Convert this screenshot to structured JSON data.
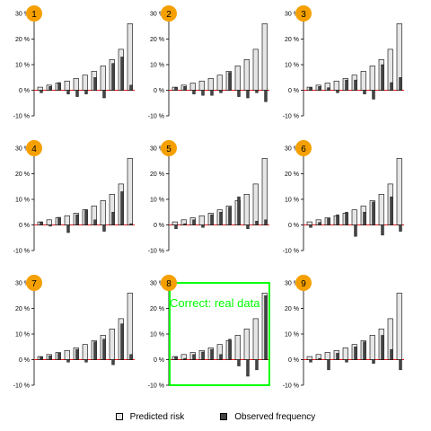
{
  "chart_data": {
    "type": "bar",
    "layout": "3x3 lineup grid",
    "ylim": [
      -10,
      30
    ],
    "yticks": [
      "-10 %",
      "0 %",
      "10 %",
      "20 %",
      "30 %"
    ],
    "yticks_values": [
      -10,
      0,
      10,
      20,
      30
    ],
    "reference_line": {
      "y": 0,
      "color": "#e31a1c"
    },
    "legend": {
      "placement": "bottom-center",
      "items": [
        {
          "label": "Predicted risk",
          "color": "#e6e6e6"
        },
        {
          "label": "Observed frequency",
          "color": "#444444"
        }
      ]
    },
    "highlight": {
      "panel": "8",
      "label": "Correct: real data",
      "color": "#00ff00"
    },
    "badge_color": "#f5a000",
    "predicted": [
      1.2,
      2.0,
      2.8,
      3.6,
      4.6,
      5.9,
      7.4,
      9.5,
      12.0,
      16.0,
      26.0
    ],
    "panels": [
      {
        "label": "1",
        "observed": [
          -1.0,
          1.5,
          3.0,
          -1.5,
          -2.5,
          -1.5,
          5.0,
          -3.0,
          10.5,
          13.0,
          2.0
        ]
      },
      {
        "label": "2",
        "observed": [
          1.0,
          1.5,
          -1.5,
          -2.0,
          -2.0,
          -1.0,
          7.0,
          -2.5,
          -3.0,
          -1.0,
          -4.5
        ]
      },
      {
        "label": "3",
        "observed": [
          1.0,
          1.5,
          1.0,
          -1.0,
          4.0,
          4.0,
          -1.5,
          -3.5,
          10.0,
          3.0,
          5.0
        ]
      },
      {
        "label": "4",
        "observed": [
          1.0,
          -0.5,
          3.0,
          -3.0,
          4.0,
          6.0,
          2.0,
          -2.5,
          5.0,
          13.0,
          0.5
        ]
      },
      {
        "label": "5",
        "observed": [
          -1.5,
          0.5,
          2.0,
          -1.0,
          4.0,
          5.0,
          7.0,
          11.0,
          -1.5,
          1.5,
          2.0
        ]
      },
      {
        "label": "6",
        "observed": [
          -1.0,
          1.0,
          2.5,
          4.0,
          5.0,
          -4.5,
          5.0,
          9.0,
          -4.0,
          11.0,
          -2.5
        ]
      },
      {
        "label": "7",
        "observed": [
          1.0,
          1.5,
          2.5,
          -1.0,
          4.0,
          -1.0,
          7.0,
          8.0,
          -2.0,
          14.0,
          2.0
        ]
      },
      {
        "label": "8",
        "observed": [
          1.0,
          0.5,
          2.0,
          3.0,
          4.0,
          2.0,
          8.0,
          -2.5,
          -6.5,
          -4.0,
          25.0
        ]
      },
      {
        "label": "9",
        "observed": [
          -1.0,
          0.5,
          -4.0,
          2.5,
          -1.0,
          5.0,
          7.0,
          -1.5,
          9.5,
          4.0,
          -4.0
        ]
      }
    ]
  }
}
